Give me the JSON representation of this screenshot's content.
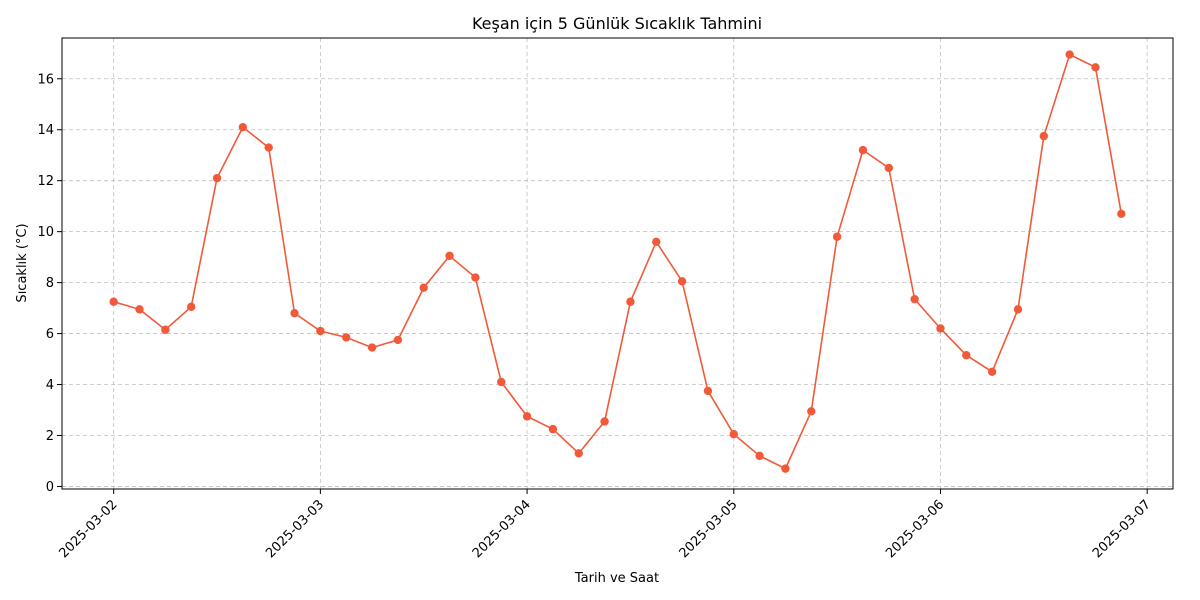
{
  "chart_data": {
    "type": "line",
    "title": "Keşan için 5 Günlük Sıcaklık Tahmini",
    "xlabel": "Tarih ve Saat",
    "ylabel": "Sıcaklık (°C)",
    "color": "#f05a3a",
    "grid": true,
    "x_start": "2025-03-02T00:00",
    "x_step_hours": 3,
    "x_ticks": [
      "2025-03-02",
      "2025-03-03",
      "2025-03-04",
      "2025-03-05",
      "2025-03-06",
      "2025-03-07"
    ],
    "y_ticks": [
      0,
      2,
      4,
      6,
      8,
      10,
      12,
      14,
      16
    ],
    "xlim": [
      "2025-03-01T18:00",
      "2025-03-07T03:00"
    ],
    "ylim": [
      -0.1,
      17.6
    ],
    "series": [
      {
        "values": [
          7.25,
          6.95,
          6.15,
          7.05,
          12.1,
          14.1,
          13.3,
          6.8,
          6.1,
          5.85,
          5.45,
          5.75,
          7.8,
          9.05,
          8.2,
          4.1,
          2.75,
          2.25,
          1.3,
          2.55,
          7.25,
          9.6,
          8.05,
          3.75,
          2.05,
          1.2,
          0.7,
          2.95,
          9.8,
          13.2,
          12.5,
          7.35,
          6.2,
          5.15,
          4.5,
          6.95,
          13.75,
          16.95,
          16.45,
          10.7
        ]
      }
    ]
  }
}
